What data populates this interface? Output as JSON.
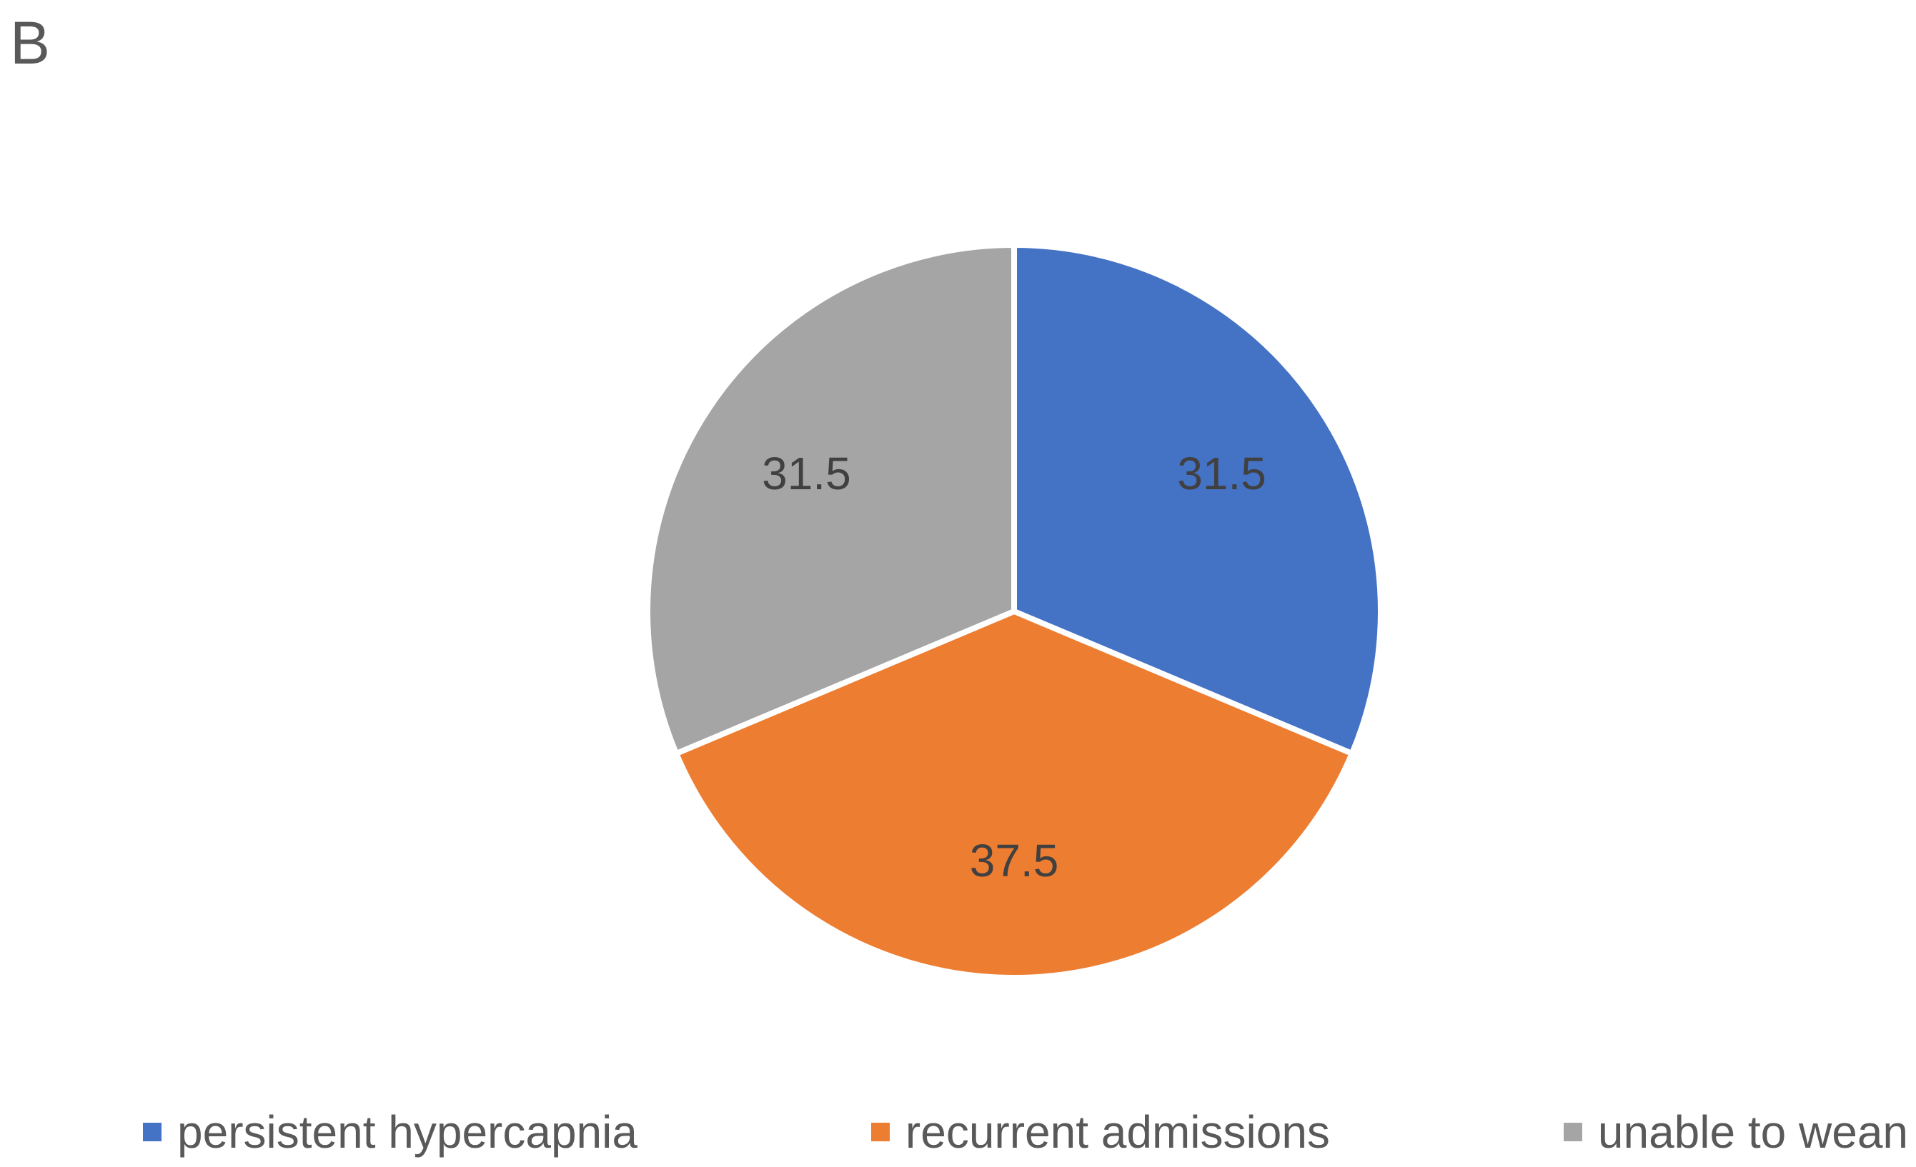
{
  "panel_label": "B",
  "chart_data": {
    "type": "pie",
    "title": "",
    "categories": [
      "persistent hypercapnia",
      "recurrent admissions",
      "unable to wean"
    ],
    "values": [
      31.5,
      37.5,
      31.5
    ],
    "data_labels": [
      "31.5",
      "37.5",
      "31.5"
    ],
    "colors": [
      "#4472C4",
      "#ED7D31",
      "#A5A5A5"
    ],
    "start_angle": "12 o'clock, clockwise",
    "legend_position": "bottom"
  }
}
